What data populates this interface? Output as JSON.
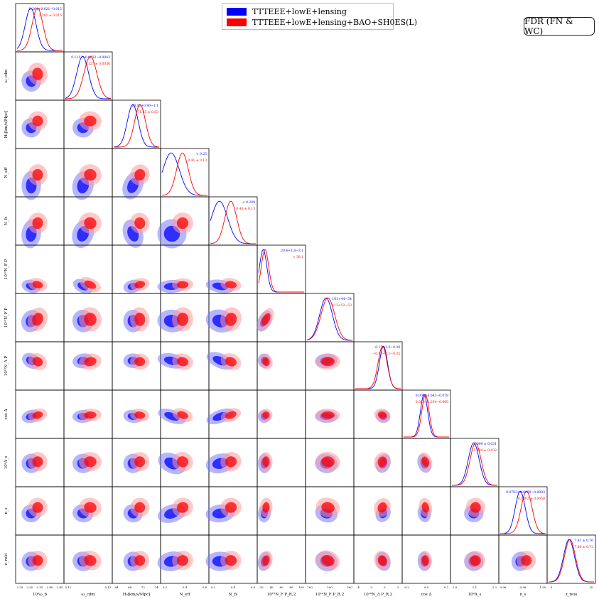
{
  "legend": {
    "entries": [
      {
        "label": "TTTEEE+lowE+lensing",
        "color": "#0000ff"
      },
      {
        "label": "TTTEEE+lowE+lensing+BAO+SH0ES(L)",
        "color": "#ff0000"
      }
    ]
  },
  "tag": "FDR (FN & WC)",
  "chart_data": {
    "type": "scatter",
    "subtype": "corner-plot",
    "params": [
      "10^2 ω_b",
      "ω_cdm",
      "H_0 [km/s/Mpc]",
      "N_eff",
      "N_fs",
      "10^10 N_{F,2}^F P_{R,2}^{(0)}",
      "10^10 N_{F,2}^F P_{R,2}^{(0)}",
      "10^10 N_{\\Lambda} P_{R,2}^{(0)}",
      "cos Δ",
      "10^9 A_s",
      "n_s",
      "z_reio"
    ],
    "xlabels": [
      "10²ω_b",
      "ω_cdm",
      "H₀[km/s/Mpc]",
      "N_eff",
      "N_fs",
      "10¹⁰N_F P_R,2",
      "10¹⁰N_F P_R,2",
      "10¹⁰N_Λ P_R,2",
      "cos Δ",
      "10⁹A_s",
      "n_s",
      "z_reio"
    ],
    "ylabels": [
      "",
      "ω_cdm",
      "H₀[km/s/Mpc]",
      "N_eff",
      "N_fs",
      "10¹⁰N_F P",
      "10¹⁰N_F P",
      "10¹⁰N_Λ P",
      "cos Δ",
      "10⁹A_s",
      "n_s",
      "z_reio"
    ],
    "ticks": [
      [
        "2.25",
        "2.30",
        "2.35",
        "2.40",
        "2.45"
      ],
      [
        "0.12",
        "0.13"
      ],
      [
        "64",
        "68",
        "72",
        "74"
      ],
      [
        "0.2",
        "0.4",
        "0.6"
      ],
      [
        "0.2",
        "0.4",
        "0.6"
      ],
      [
        "20",
        "40",
        "60",
        "80",
        "100"
      ],
      [
        "100",
        "200",
        "300"
      ],
      [
        "-4",
        "-2",
        "0",
        "2"
      ],
      [
        "-0.2",
        "0.0",
        "0.2"
      ],
      [
        "2.0",
        "2.1",
        "2.2"
      ],
      [
        "0.96",
        "0.98",
        "1.00"
      ],
      [
        "5",
        "10"
      ]
    ],
    "series": [
      {
        "name": "TTTEEE+lowE+lensing",
        "color": "#0000ff",
        "fill_inner": "#0000ff",
        "fill_outer": "#7a7aff",
        "means": [
          0.3,
          0.38,
          0.42,
          0.2,
          0.2,
          0.1,
          0.42,
          0.62,
          0.45,
          0.48,
          0.44,
          0.45
        ],
        "sigmas": [
          0.12,
          0.13,
          0.12,
          0.18,
          0.18,
          0.08,
          0.14,
          0.09,
          0.08,
          0.12,
          0.11,
          0.12
        ],
        "stats": [
          "2.264+0.021−0.015",
          "0.1212+0.0032−0.0043",
          "68.06+0.90−1.1",
          "< 0.25",
          "< 0.209",
          "20.4+1.8−3.1",
          "101+44−54",
          "0.17+1.3−0.39",
          "0.003+0.043−0.078",
          "2.099 ± 0.031",
          "0.9703+0.0069−0.0083",
          "7.81 ± 0.76"
        ]
      },
      {
        "name": "TTTEEE+lowE+lensing+BAO+SH0ES(L)",
        "color": "#ff0000",
        "fill_inner": "#ff0000",
        "fill_outer": "#ff9a9a",
        "means": [
          0.45,
          0.55,
          0.58,
          0.45,
          0.45,
          0.14,
          0.46,
          0.6,
          0.48,
          0.52,
          0.58,
          0.47
        ],
        "sigmas": [
          0.12,
          0.14,
          0.12,
          0.13,
          0.13,
          0.08,
          0.15,
          0.1,
          0.08,
          0.12,
          0.12,
          0.12
        ],
        "stats": [
          "2.281 ± 0.015",
          "0.127 ± 0.0036",
          "71.35 ± 0.83",
          "0.41 ± 0.13",
          "0.43 ± 0.13",
          "< 38.1",
          "113+52−53",
          "−0.10+1.2−0.35",
          "0.028+0.034−0.060",
          "2.104 ± 0.032",
          "0.9802 ± 0.0058",
          "7.80 ± 0.72"
        ]
      }
    ],
    "grid": false
  }
}
